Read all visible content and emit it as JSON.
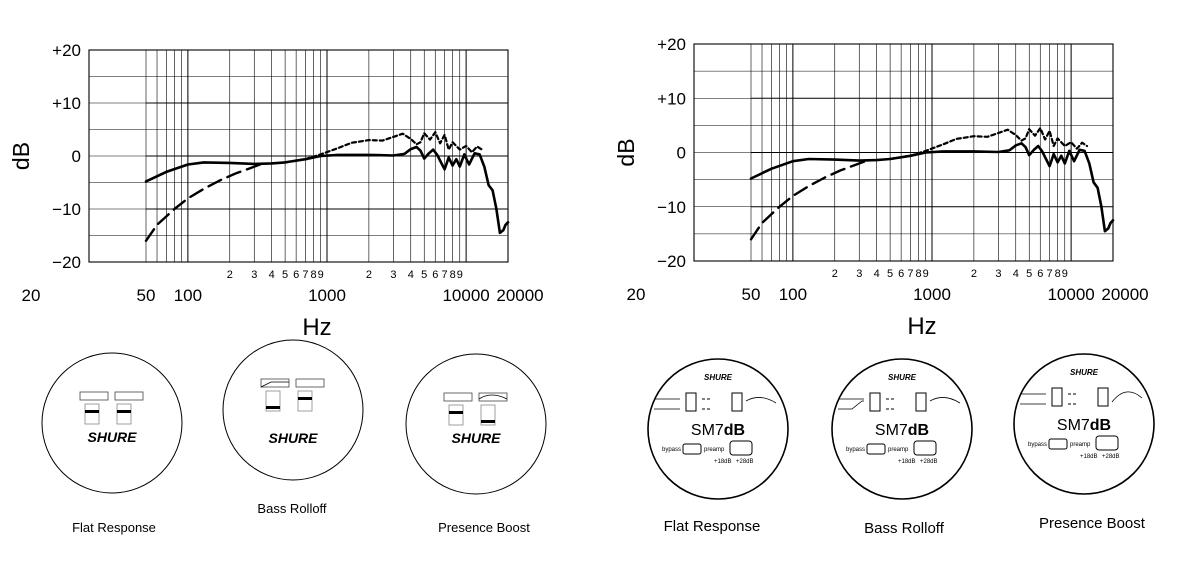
{
  "chart_data": [
    {
      "type": "line",
      "xscale": "log",
      "xlim": [
        50,
        20000
      ],
      "ylim": [
        -20,
        20
      ],
      "ylabel": "dB",
      "xlabel": "Hz",
      "y_ticks": [
        "+20",
        "+10",
        "0",
        "−10",
        "−20"
      ],
      "x_major_ticks": [
        {
          "value": 20,
          "label": "20"
        },
        {
          "value": 50,
          "label": "50"
        },
        {
          "value": 100,
          "label": "100"
        },
        {
          "value": 1000,
          "label": "1000"
        },
        {
          "value": 10000,
          "label": "10000"
        },
        {
          "value": 20000,
          "label": "20000"
        }
      ],
      "x_minor_ticks": [
        {
          "value": 200,
          "label": "2"
        },
        {
          "value": 300,
          "label": "3"
        },
        {
          "value": 400,
          "label": "4"
        },
        {
          "value": 500,
          "label": "5"
        },
        {
          "value": 600,
          "label": "6"
        },
        {
          "value": 700,
          "label": "7"
        },
        {
          "value": 800,
          "label": "8"
        },
        {
          "value": 900,
          "label": "9"
        },
        {
          "value": 2000,
          "label": "2"
        },
        {
          "value": 3000,
          "label": "3"
        },
        {
          "value": 4000,
          "label": "4"
        },
        {
          "value": 5000,
          "label": "5"
        },
        {
          "value": 6000,
          "label": "6"
        },
        {
          "value": 7000,
          "label": "7"
        },
        {
          "value": 8000,
          "label": "8"
        },
        {
          "value": 9000,
          "label": "9"
        }
      ],
      "series": [
        {
          "style": "solid",
          "x": [
            50,
            70,
            100,
            130,
            200,
            300,
            400,
            500,
            700,
            900,
            1200,
            2000,
            3000,
            3600,
            4000,
            4400,
            4700,
            5000,
            5400,
            5800,
            6200,
            6600,
            7000,
            7500,
            8000,
            8500,
            9000,
            9700,
            10500,
            11500,
            12500,
            13500,
            14500,
            15500,
            16500,
            17500,
            18500,
            19200,
            20000
          ],
          "y": [
            -4.8,
            -3,
            -1.6,
            -1.2,
            -1.3,
            -1.5,
            -1.4,
            -1.2,
            -0.6,
            0,
            0.2,
            0.2,
            0.1,
            0.4,
            1.3,
            1.7,
            1,
            -0.5,
            0.5,
            1.2,
            0.2,
            -1.2,
            -2.5,
            -0.3,
            -1.8,
            -0.6,
            -2,
            0.3,
            -1.6,
            0.5,
            0.3,
            -2,
            -5.5,
            -6.5,
            -10,
            -14.5,
            -14,
            -13,
            -12.5
          ]
        },
        {
          "style": "dashed",
          "x": [
            50,
            60,
            80,
            100,
            130,
            170,
            220,
            280,
            330
          ],
          "y": [
            -16,
            -13,
            -10,
            -8,
            -6.2,
            -4.6,
            -3.3,
            -2.3,
            -1.6
          ]
        },
        {
          "style": "dotted",
          "x": [
            500,
            700,
            900,
            1200,
            1500,
            2000,
            2500,
            3000,
            3500,
            4000,
            4400,
            4700,
            5000,
            5500,
            6000,
            6500,
            7000,
            7500,
            8000,
            9000,
            10000,
            11000,
            12000,
            13000
          ],
          "y": [
            -1.2,
            -0.6,
            0.3,
            1.5,
            2.5,
            3,
            2.9,
            3.6,
            4.2,
            3.2,
            2.2,
            2.6,
            4.3,
            3.1,
            4.5,
            2.4,
            4,
            1.2,
            2.6,
            1.2,
            1.9,
            0.7,
            1.8,
            1.2
          ]
        }
      ]
    },
    {
      "type": "line",
      "xscale": "log",
      "xlim": [
        50,
        20000
      ],
      "ylim": [
        -20,
        20
      ],
      "ylabel": "dB",
      "xlabel": "Hz",
      "note": "same curves as left panel"
    }
  ],
  "left_dials": {
    "logo": "SHURE",
    "captions": [
      "Flat Response",
      "Bass Rolloff",
      "Presence Boost"
    ]
  },
  "right_dials": {
    "logo": "SHURE",
    "model_plain": "SM7",
    "model_bold": "dB",
    "bypass": "bypass",
    "preamp": "preamp",
    "gain_low": "+18dB",
    "gain_high": "+28dB",
    "captions": [
      "Flat Response",
      "Bass Rolloff",
      "Presence Boost"
    ]
  }
}
